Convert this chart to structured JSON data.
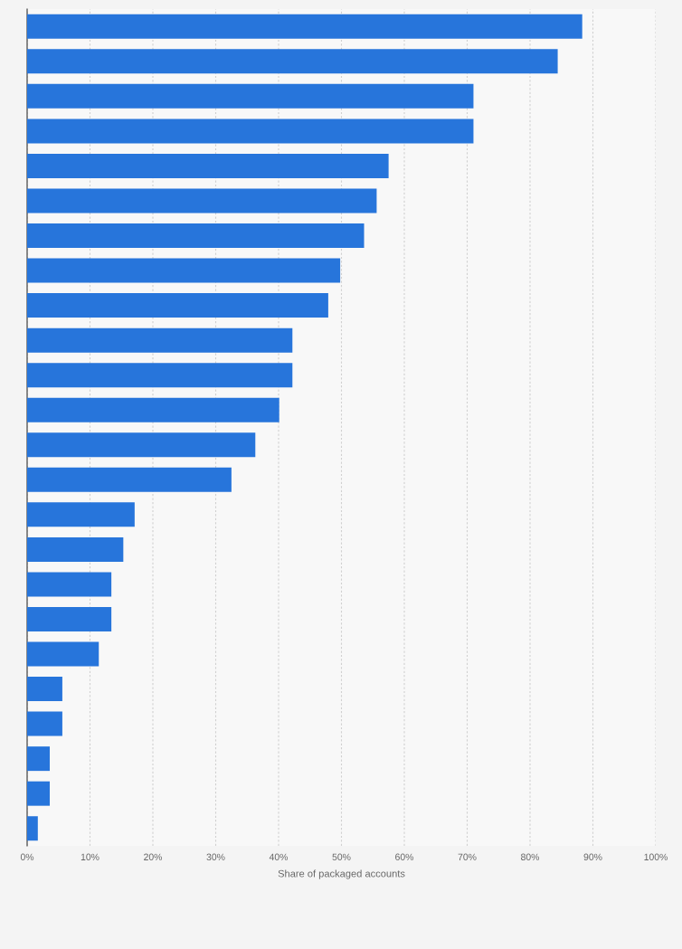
{
  "chart_data": {
    "type": "bar",
    "orientation": "horizontal",
    "xlabel": "Share of packaged accounts",
    "categories": [
      null,
      null,
      null,
      null,
      null,
      null,
      null,
      null,
      null,
      null,
      null,
      null,
      null,
      null,
      null,
      null,
      null,
      null,
      null,
      null,
      null,
      null,
      null,
      null
    ],
    "values": [
      88.3,
      84.4,
      71,
      71,
      57.5,
      55.6,
      53.6,
      49.8,
      47.9,
      42.2,
      42.2,
      40.1,
      36.3,
      32.5,
      17.1,
      15.3,
      13.4,
      13.4,
      11.4,
      5.6,
      5.6,
      3.6,
      3.6,
      1.7
    ],
    "color": "#2775db",
    "xlim": [
      0,
      100
    ],
    "xticks": [
      {
        "value": 0,
        "label": "0%"
      },
      {
        "value": 10,
        "label": "10%"
      },
      {
        "value": 20,
        "label": "20%"
      },
      {
        "value": 30,
        "label": "30%"
      },
      {
        "value": 40,
        "label": "40%"
      },
      {
        "value": 50,
        "label": "50%"
      },
      {
        "value": 60,
        "label": "60%"
      },
      {
        "value": 70,
        "label": "70%"
      },
      {
        "value": 80,
        "label": "80%"
      },
      {
        "value": 90,
        "label": "90%"
      },
      {
        "value": 100,
        "label": "100%"
      }
    ],
    "grid": "x"
  }
}
